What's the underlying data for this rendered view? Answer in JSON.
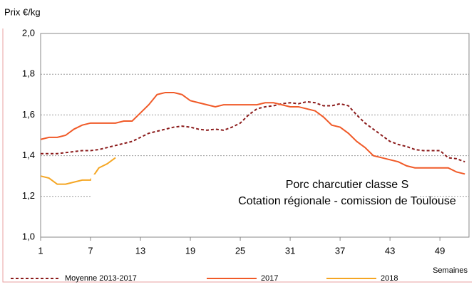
{
  "chart_data": {
    "type": "line",
    "y_label": "Prix €/kg",
    "x_label": "Semaines",
    "annotations": [
      "Porc charcutier classe S",
      "Cotation régionale - comission de Toulouse"
    ],
    "x": [
      1,
      2,
      3,
      4,
      5,
      6,
      7,
      8,
      9,
      10,
      11,
      12,
      13,
      14,
      15,
      16,
      17,
      18,
      19,
      20,
      21,
      22,
      23,
      24,
      25,
      26,
      27,
      28,
      29,
      30,
      31,
      32,
      33,
      34,
      35,
      36,
      37,
      38,
      39,
      40,
      41,
      42,
      43,
      44,
      45,
      46,
      47,
      48,
      49,
      50,
      51,
      52
    ],
    "xlim": [
      1,
      52.5
    ],
    "xticks": [
      1,
      7,
      13,
      19,
      25,
      31,
      37,
      43,
      49
    ],
    "ylim": [
      1.0,
      2.0
    ],
    "yticks": [
      {
        "value": 1.0,
        "label": "1,0"
      },
      {
        "value": 1.2,
        "label": "1,2"
      },
      {
        "value": 1.4,
        "label": "1,4"
      },
      {
        "value": 1.6,
        "label": "1,6"
      },
      {
        "value": 1.8,
        "label": "1,8"
      },
      {
        "value": 2.0,
        "label": "2,0"
      }
    ],
    "grid": true,
    "legend": "bottom",
    "series": [
      {
        "name": "Moyenne 2013-2017",
        "color": "#8b1a1a",
        "style": "dashed",
        "values": [
          1.41,
          1.41,
          1.41,
          1.415,
          1.42,
          1.425,
          1.425,
          1.43,
          1.44,
          1.45,
          1.46,
          1.47,
          1.49,
          1.51,
          1.52,
          1.53,
          1.54,
          1.545,
          1.54,
          1.53,
          1.525,
          1.53,
          1.525,
          1.54,
          1.56,
          1.6,
          1.63,
          1.64,
          1.645,
          1.655,
          1.66,
          1.655,
          1.665,
          1.66,
          1.645,
          1.645,
          1.655,
          1.645,
          1.6,
          1.56,
          1.53,
          1.5,
          1.47,
          1.455,
          1.445,
          1.43,
          1.425,
          1.425,
          1.425,
          1.39,
          1.385,
          1.37
        ]
      },
      {
        "name": "2017",
        "color": "#f05a28",
        "style": "solid",
        "values": [
          1.48,
          1.49,
          1.49,
          1.5,
          1.53,
          1.55,
          1.56,
          1.56,
          1.56,
          1.56,
          1.57,
          1.57,
          1.61,
          1.65,
          1.7,
          1.71,
          1.71,
          1.7,
          1.67,
          1.66,
          1.65,
          1.64,
          1.65,
          1.65,
          1.65,
          1.65,
          1.65,
          1.66,
          1.66,
          1.65,
          1.64,
          1.64,
          1.63,
          1.62,
          1.59,
          1.55,
          1.54,
          1.51,
          1.47,
          1.44,
          1.4,
          1.39,
          1.38,
          1.37,
          1.35,
          1.34,
          1.34,
          1.34,
          1.34,
          1.34,
          1.32,
          1.31
        ]
      },
      {
        "name": "2018",
        "color": "#f5a623",
        "style": "solid",
        "values": [
          1.3,
          1.29,
          1.26,
          1.26,
          1.27,
          1.28,
          1.28,
          1.34,
          1.36,
          1.39,
          null,
          null,
          null,
          null,
          null,
          null,
          null,
          null,
          null,
          null,
          null,
          null,
          null,
          null,
          null,
          null,
          null,
          null,
          null,
          null,
          null,
          null,
          null,
          null,
          null,
          null,
          null,
          null,
          null,
          null,
          null,
          null,
          null,
          null,
          null,
          null,
          null,
          null,
          null,
          null,
          null,
          null
        ]
      }
    ]
  }
}
